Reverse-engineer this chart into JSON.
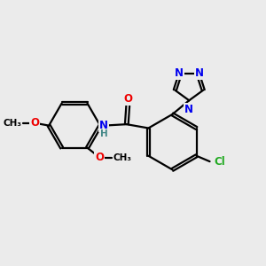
{
  "bg_color": "#ebebeb",
  "bond_color": "#000000",
  "bond_width": 1.6,
  "atom_colors": {
    "N": "#0000ee",
    "O": "#ee0000",
    "Cl": "#22aa22",
    "C": "#000000",
    "H": "#448888"
  },
  "font_size_atom": 8.5,
  "font_size_label": 7.5,
  "dbo": 0.055
}
